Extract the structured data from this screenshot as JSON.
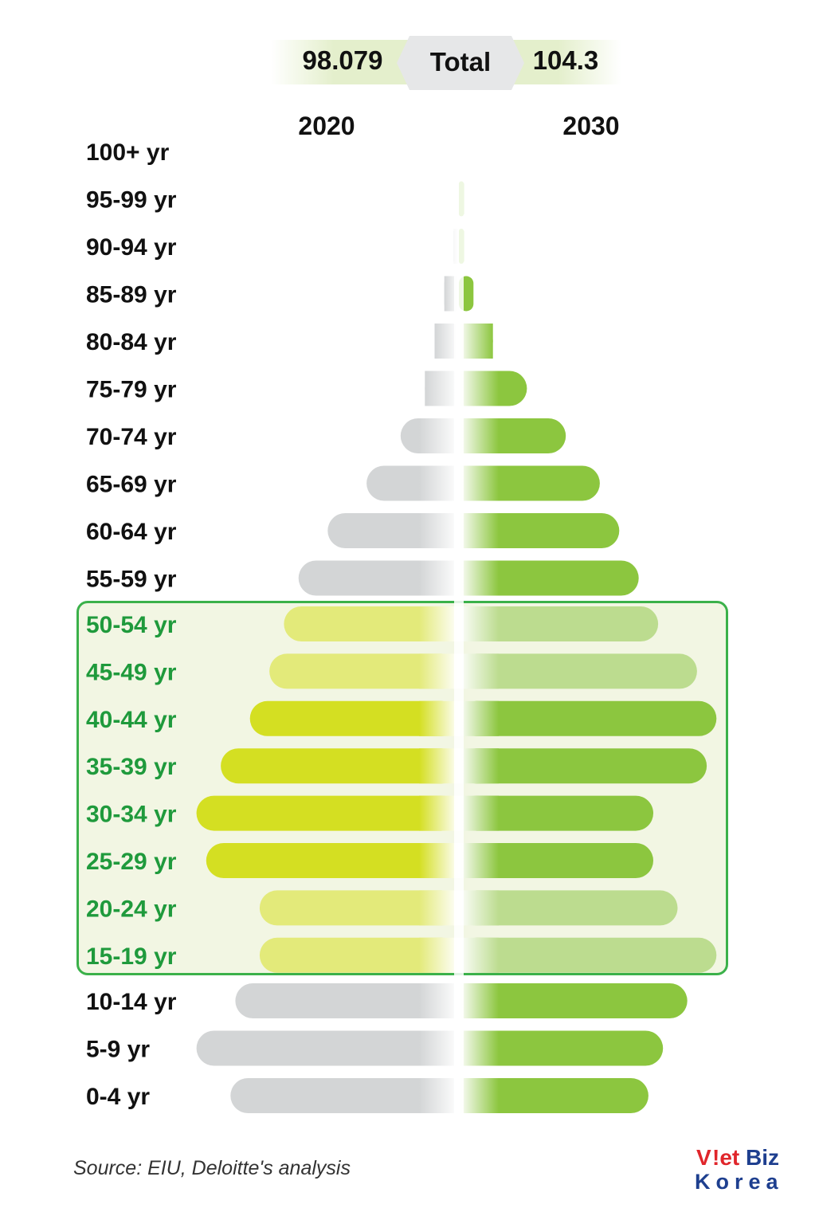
{
  "header": {
    "total_2020": "98.079",
    "total_label": "Total",
    "total_2030": "104.3",
    "year_left": "2020",
    "year_right": "2030"
  },
  "chart_data": {
    "type": "bar",
    "layout": "population-pyramid",
    "categories": [
      "100+ yr",
      "95-99 yr",
      "90-94 yr",
      "85-89 yr",
      "80-84 yr",
      "75-79 yr",
      "70-74 yr",
      "65-69 yr",
      "60-64 yr",
      "55-59 yr",
      "50-54 yr",
      "45-49 yr",
      "40-44 yr",
      "35-39 yr",
      "30-34 yr",
      "25-29 yr",
      "20-24 yr",
      "15-19 yr",
      "10-14 yr",
      "5-9 yr",
      "0-4 yr"
    ],
    "series": [
      {
        "name": "2020",
        "values": [
          0.0,
          0.0,
          0.1,
          0.3,
          0.5,
          0.7,
          1.2,
          1.9,
          2.7,
          3.3,
          3.6,
          3.9,
          4.3,
          4.9,
          5.4,
          5.2,
          4.1,
          4.1,
          4.6,
          5.4,
          4.7
        ]
      },
      {
        "name": "2030",
        "values": [
          0.0,
          0.1,
          0.1,
          0.3,
          0.7,
          1.4,
          2.2,
          2.9,
          3.3,
          3.7,
          4.1,
          4.9,
          5.3,
          5.1,
          4.0,
          4.0,
          4.5,
          5.3,
          4.7,
          4.2,
          3.9
        ]
      }
    ],
    "highlight_range": [
      "15-19 yr",
      "50-54 yr"
    ],
    "colors": {
      "left_normal": "#d3d5d6",
      "left_highlight_light": "#e3ea7a",
      "left_highlight_strong": "#d4df22",
      "right_normal": "#8cc63f",
      "right_highlight_light": "#bcdc8f",
      "right_highlight_strong": "#8cc63f",
      "label_normal": "#111111",
      "label_highlight": "#1f9a3c"
    },
    "strong_rows": [
      "25-29 yr",
      "30-34 yr",
      "35-39 yr",
      "40-44 yr"
    ]
  },
  "footer": {
    "source": "Source: EIU, Deloitte's analysis",
    "logo_line1_a": "V",
    "logo_line1_b": "!et",
    "logo_line1_c": "Biz",
    "logo_line2": "Korea"
  }
}
